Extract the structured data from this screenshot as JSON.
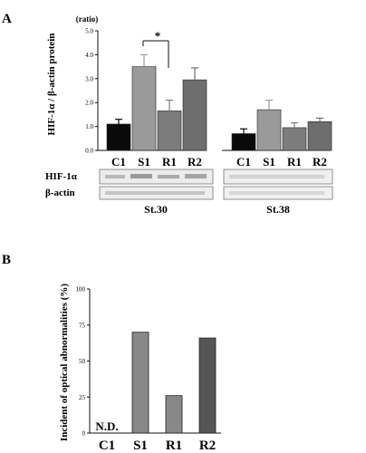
{
  "panels": {
    "a_letter": "A",
    "b_letter": "B"
  },
  "chart_data": [
    {
      "type": "bar",
      "panel": "A",
      "ylabel": "HIF-1α / β-actin protein",
      "yunit": "(ratio)",
      "ylim": [
        0,
        5
      ],
      "yticks": [
        "0.0",
        "1.0",
        "2.0",
        "3.0",
        "4.0",
        "5.0"
      ],
      "grid": false,
      "significance": "*",
      "groups": [
        {
          "name": "St.30",
          "categories": [
            "C1",
            "S1",
            "R1",
            "R2"
          ],
          "values": [
            1.1,
            3.5,
            1.65,
            2.95
          ],
          "errors": [
            0.2,
            0.5,
            0.45,
            0.5
          ],
          "colors": [
            "#0a0a0a",
            "#9a9a9a",
            "#7c7c7c",
            "#6e6e6e"
          ]
        },
        {
          "name": "St.38",
          "categories": [
            "C1",
            "S1",
            "R1",
            "R2"
          ],
          "values": [
            0.7,
            1.7,
            0.95,
            1.2
          ],
          "errors": [
            0.2,
            0.4,
            0.2,
            0.15
          ],
          "colors": [
            "#0a0a0a",
            "#9a9a9a",
            "#7c7c7c",
            "#6e6e6e"
          ]
        }
      ],
      "blot_labels": [
        "HIF-1α",
        "β-actin"
      ]
    },
    {
      "type": "bar",
      "panel": "B",
      "ylabel": "Incident of optical abnormalities (%)",
      "ylim": [
        0,
        100
      ],
      "yticks": [
        "0",
        "25",
        "50",
        "75",
        "100"
      ],
      "grid": false,
      "categories": [
        "C1",
        "S1",
        "R1",
        "R2"
      ],
      "values": [
        0,
        70,
        26,
        66
      ],
      "annotations": [
        "N.D.",
        "",
        "",
        ""
      ],
      "colors": [
        "#888888",
        "#888888",
        "#888888",
        "#555555"
      ]
    }
  ]
}
